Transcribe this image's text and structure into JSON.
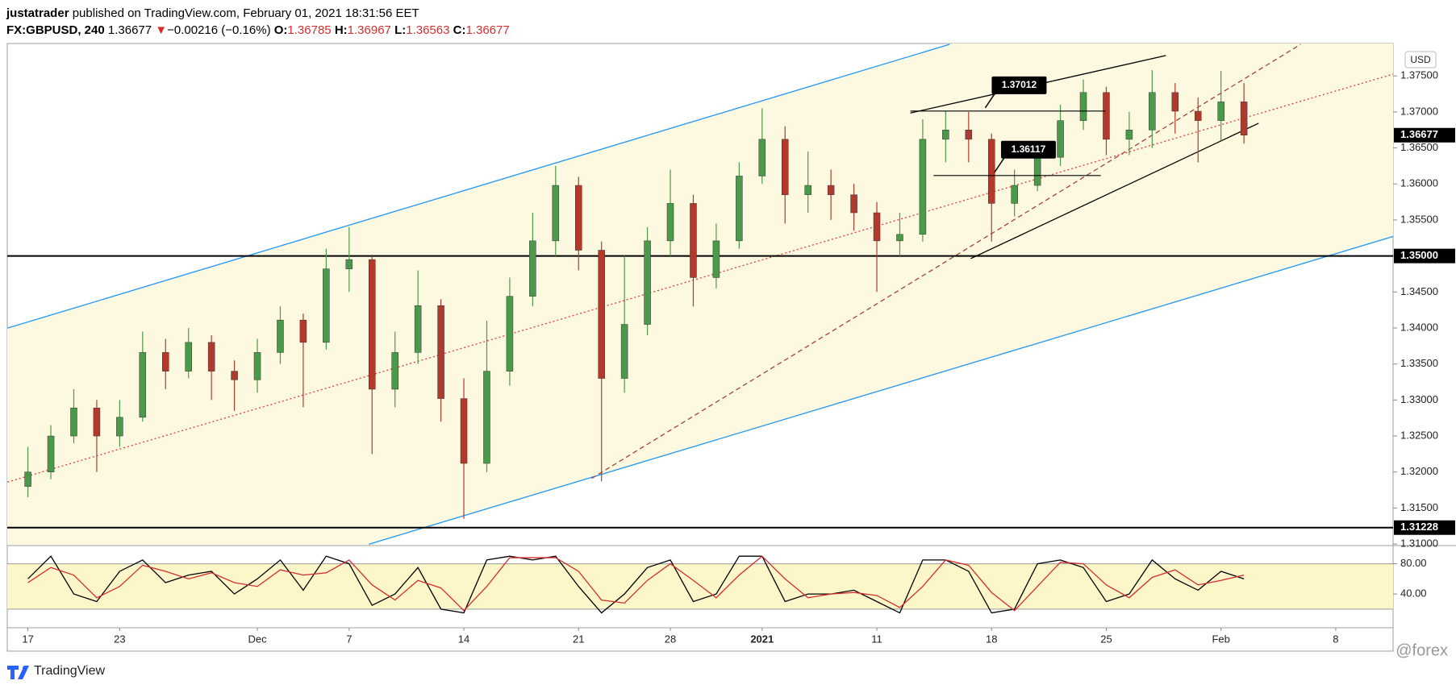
{
  "header": {
    "author": "justatrader",
    "published": "published on TradingView.com, February 01, 2021 18:31:56 EET",
    "symbol": "FX:GBPUSD, 240",
    "last": "1.36677",
    "arrow": "▼",
    "change": "−0.00216 (−0.16%)",
    "o_label": "O:",
    "o": "1.36785",
    "h_label": "H:",
    "h": "1.36967",
    "l_label": "L:",
    "l": "1.36563",
    "c_label": "C:",
    "c": "1.36677"
  },
  "footer": {
    "brand": "TradingView",
    "watermark": "@forex"
  },
  "chart_data": {
    "type": "candlestick",
    "currency": "USD",
    "open": [
      1.318,
      1.32,
      1.325,
      1.3289,
      1.325,
      1.3276,
      1.3366,
      1.334,
      1.338,
      1.334,
      1.3328,
      1.3366,
      1.3411,
      1.338,
      1.3482,
      1.3495,
      1.3315,
      1.3366,
      1.3431,
      1.3302,
      1.3212,
      1.334,
      1.3444,
      1.3521,
      1.3598,
      1.3508,
      1.333,
      1.3405,
      1.3521,
      1.3573,
      1.347,
      1.3521,
      1.3611,
      1.3662,
      1.3585,
      1.3598,
      1.3585,
      1.356,
      1.3521,
      1.353,
      1.3662,
      1.3675,
      1.3662,
      1.3573,
      1.3598,
      1.3637,
      1.3688,
      1.3727,
      1.3662,
      1.3675,
      1.3727,
      1.3701,
      1.3688,
      1.3714
    ],
    "high": [
      1.3235,
      1.3265,
      1.3315,
      1.33,
      1.33,
      1.3395,
      1.3385,
      1.34,
      1.339,
      1.3355,
      1.3385,
      1.343,
      1.342,
      1.351,
      1.354,
      1.35,
      1.3395,
      1.348,
      1.344,
      1.333,
      1.341,
      1.347,
      1.356,
      1.3625,
      1.361,
      1.352,
      1.35,
      1.354,
      1.362,
      1.3585,
      1.3545,
      1.363,
      1.3705,
      1.368,
      1.3645,
      1.362,
      1.36,
      1.3575,
      1.356,
      1.369,
      1.3701,
      1.37,
      1.367,
      1.362,
      1.365,
      1.371,
      1.3745,
      1.3735,
      1.37,
      1.3758,
      1.374,
      1.372,
      1.3757,
      1.374
    ],
    "low": [
      1.3165,
      1.319,
      1.324,
      1.32,
      1.3235,
      1.327,
      1.3315,
      1.333,
      1.33,
      1.3285,
      1.331,
      1.335,
      1.329,
      1.337,
      1.345,
      1.3225,
      1.329,
      1.335,
      1.327,
      1.3135,
      1.32,
      1.332,
      1.343,
      1.35,
      1.348,
      1.3187,
      1.331,
      1.339,
      1.35,
      1.343,
      1.3455,
      1.351,
      1.36,
      1.3545,
      1.356,
      1.355,
      1.3535,
      1.345,
      1.35,
      1.352,
      1.363,
      1.363,
      1.352,
      1.3555,
      1.359,
      1.3625,
      1.3675,
      1.364,
      1.364,
      1.365,
      1.367,
      1.363,
      1.366,
      1.3656
    ],
    "close": [
      1.32,
      1.325,
      1.3289,
      1.325,
      1.3276,
      1.3366,
      1.334,
      1.338,
      1.334,
      1.3328,
      1.3366,
      1.3411,
      1.338,
      1.3482,
      1.3495,
      1.3315,
      1.3366,
      1.3431,
      1.3302,
      1.3212,
      1.334,
      1.3444,
      1.3521,
      1.3598,
      1.3508,
      1.333,
      1.3405,
      1.3521,
      1.3573,
      1.347,
      1.3521,
      1.3611,
      1.3662,
      1.3585,
      1.3598,
      1.3585,
      1.356,
      1.3521,
      1.353,
      1.3662,
      1.3675,
      1.3662,
      1.3573,
      1.3598,
      1.3637,
      1.3688,
      1.3727,
      1.3662,
      1.3675,
      1.3727,
      1.3701,
      1.3688,
      1.3714,
      1.36677
    ],
    "colors": {
      "up": "#4a9a4a",
      "down": "#b23a2c"
    },
    "xlim": [
      -0.9,
      59.5
    ],
    "xticks": [
      {
        "value": 0,
        "label": "17"
      },
      {
        "value": 4,
        "label": "23"
      },
      {
        "value": 10,
        "label": "Dec"
      },
      {
        "value": 14,
        "label": "7"
      },
      {
        "value": 19,
        "label": "14"
      },
      {
        "value": 24,
        "label": "21"
      },
      {
        "value": 28,
        "label": "28"
      },
      {
        "value": 32,
        "label": "2021"
      },
      {
        "value": 37,
        "label": "11"
      },
      {
        "value": 42,
        "label": "18"
      },
      {
        "value": 47,
        "label": "25"
      },
      {
        "value": 52,
        "label": "Feb"
      },
      {
        "value": 57,
        "label": "8"
      }
    ],
    "ylim": [
      1.3099,
      1.3795
    ],
    "yticks": [
      {
        "value": 1.31,
        "label": "1.31000"
      },
      {
        "value": 1.315,
        "label": "1.31500"
      },
      {
        "value": 1.32,
        "label": "1.32000"
      },
      {
        "value": 1.325,
        "label": "1.32500"
      },
      {
        "value": 1.33,
        "label": "1.33000"
      },
      {
        "value": 1.335,
        "label": "1.33500"
      },
      {
        "value": 1.34,
        "label": "1.34000"
      },
      {
        "value": 1.345,
        "label": "1.34500"
      },
      {
        "value": 1.35,
        "label": "1.35000"
      },
      {
        "value": 1.355,
        "label": "1.35500"
      },
      {
        "value": 1.36,
        "label": "1.36000"
      },
      {
        "value": 1.365,
        "label": "1.36500"
      },
      {
        "value": 1.37,
        "label": "1.37000"
      },
      {
        "value": 1.375,
        "label": "1.37500"
      }
    ],
    "hlines": [
      {
        "value": 1.35,
        "label": "1.35000"
      },
      {
        "value": 1.31228,
        "label": "1.31228"
      }
    ],
    "trendlines": [
      {
        "x1": -0.89,
        "y1": 1.33998,
        "x2": 40.16,
        "y2": 1.37938,
        "color": "#2196f3",
        "style": "solid"
      },
      {
        "x1": 14.86,
        "y1": 1.30997,
        "x2": 59.51,
        "y2": 1.35272,
        "color": "#2196f3",
        "style": "solid"
      },
      {
        "x1": -0.89,
        "y1": 1.3186,
        "x2": 59.51,
        "y2": 1.37526,
        "color": "#e53935",
        "style": "dotted"
      },
      {
        "x1": 24.57,
        "y1": 1.31911,
        "x2": 55.47,
        "y2": 1.37938,
        "color": "#a1443a",
        "style": "dashed"
      },
      {
        "x1": 41.09,
        "y1": 1.34963,
        "x2": 53.64,
        "y2": 1.36843,
        "color": "#000000",
        "style": "solid"
      },
      {
        "x1": 38.46,
        "y1": 1.36985,
        "x2": 49.6,
        "y2": 1.37783,
        "color": "#000000",
        "style": "solid"
      }
    ],
    "callouts": [
      {
        "value": 1.37012,
        "x1": 38.46,
        "x2": 46.96
      },
      {
        "value": 1.36117,
        "x1": 39.47,
        "x2": 46.76
      }
    ],
    "oscillator": {
      "type": "line",
      "ylim": [
        -3.6,
        103
      ],
      "yticks": [
        {
          "value": 80,
          "label": "80.00"
        },
        {
          "value": 40,
          "label": "40.00"
        }
      ],
      "band": [
        20,
        80
      ],
      "series": [
        {
          "color": "#000000",
          "values": [
            60,
            90,
            40,
            30,
            70,
            85,
            55,
            65,
            70,
            40,
            60,
            85,
            45,
            90,
            80,
            25,
            40,
            75,
            20,
            15,
            85,
            90,
            85,
            90,
            50,
            15,
            40,
            75,
            85,
            30,
            40,
            90,
            90,
            30,
            40,
            40,
            45,
            30,
            15,
            85,
            85,
            70,
            15,
            20,
            80,
            85,
            75,
            30,
            40,
            85,
            60,
            45,
            70,
            60
          ]
        },
        {
          "color": "#d32f2f",
          "values": [
            55,
            75,
            65,
            35,
            50,
            78,
            70,
            60,
            68,
            55,
            50,
            72,
            65,
            68,
            85,
            52,
            32,
            58,
            48,
            18,
            50,
            88,
            88,
            88,
            70,
            32,
            28,
            58,
            80,
            58,
            35,
            65,
            90,
            60,
            35,
            40,
            42,
            38,
            22,
            50,
            85,
            78,
            42,
            18,
            50,
            82,
            80,
            52,
            35,
            62,
            72,
            52,
            58,
            65
          ]
        }
      ]
    }
  }
}
